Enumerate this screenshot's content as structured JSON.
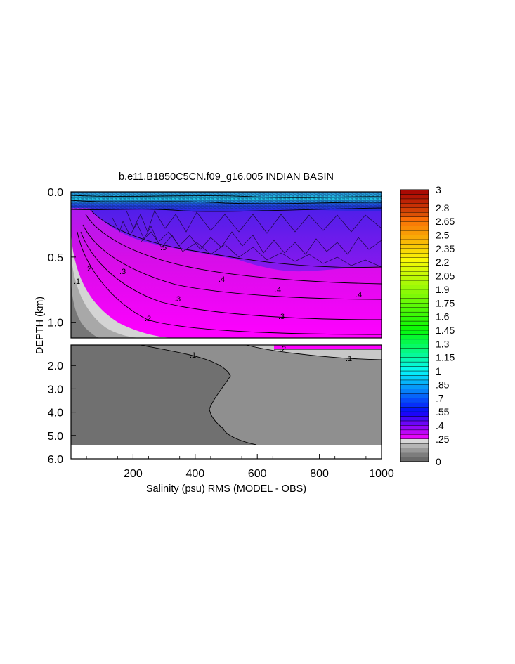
{
  "chart_data": {
    "type": "heatmap",
    "title": "b.e11.B1850C5CN.f09_g16.005 INDIAN BASIN",
    "xlabel": "Salinity (psu) RMS (MODEL - OBS)",
    "ylabel": "DEPTH (km)",
    "x_axis": {
      "range": [
        0,
        1000
      ],
      "ticks": [
        200,
        400,
        600,
        800,
        1000
      ],
      "tick_labels": [
        "200",
        "400",
        "600",
        "800",
        "1000"
      ]
    },
    "upper_panel": {
      "depth_range_km": [
        0,
        1.12
      ],
      "ticks": [
        0,
        0.5,
        1.0
      ],
      "tick_labels": [
        "0.0",
        "0.5",
        "1.0"
      ]
    },
    "lower_panel": {
      "depth_range_km": [
        1.12,
        6.0
      ],
      "ticks": [
        2,
        3,
        4,
        5,
        6
      ],
      "tick_labels": [
        "2.0",
        "3.0",
        "4.0",
        "5.0",
        "6.0"
      ],
      "ocean_floor_km": 5.4
    },
    "colorbar": {
      "min": 0,
      "max": 3,
      "step": 0.05,
      "labeled_levels": [
        3,
        2.8,
        2.65,
        2.5,
        2.35,
        2.2,
        2.05,
        1.9,
        1.75,
        1.6,
        1.45,
        1.3,
        1.15,
        1,
        0.85,
        0.7,
        0.55,
        0.4,
        0.25,
        0
      ],
      "labels": [
        "3",
        "2.8",
        "2.65",
        "2.5",
        "2.35",
        "2.2",
        "2.05",
        "1.9",
        "1.75",
        "1.6",
        "1.45",
        "1.3",
        "1.15",
        "1",
        ".85",
        ".7",
        ".55",
        ".4",
        ".25",
        "0"
      ]
    },
    "contour_labels_upper": [
      ".1",
      ".2",
      ".2",
      ".3",
      ".3",
      ".3",
      ".4",
      ".4",
      ".4",
      ".5"
    ],
    "contour_labels_lower": [
      ".1",
      ".1",
      ".2"
    ]
  }
}
